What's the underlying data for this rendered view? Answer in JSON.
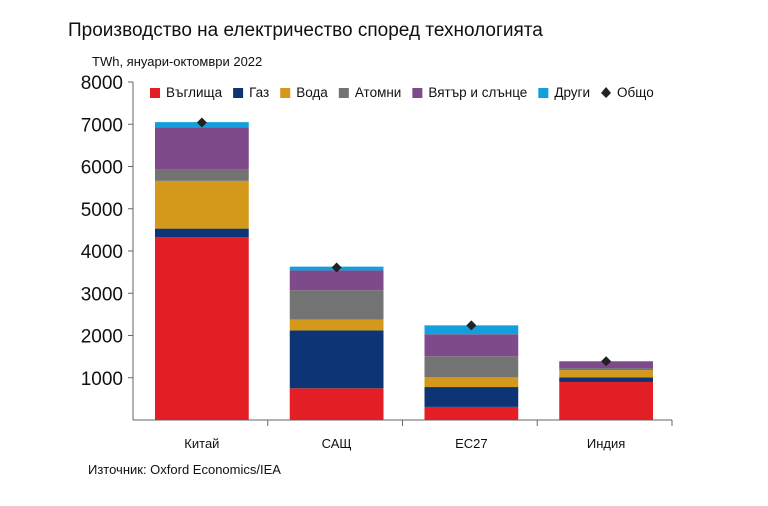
{
  "chart_data": {
    "type": "bar",
    "stacked": true,
    "title": "Производство на електричество според технологията",
    "ylabel": "TWh, януари-октомври 2022",
    "source": "Източник: Oxford Economics/IEA",
    "categories": [
      "Китай",
      "САЩ",
      "ЕС27",
      "Индия"
    ],
    "ylim": [
      0,
      8000
    ],
    "yticks": [
      1000,
      2000,
      3000,
      4000,
      5000,
      6000,
      7000,
      8000
    ],
    "series": [
      {
        "name": "Въглища",
        "color": "#e31e24",
        "values": [
          4330,
          750,
          310,
          900
        ]
      },
      {
        "name": "Газ",
        "color": "#0d3576",
        "values": [
          200,
          1370,
          470,
          110
        ]
      },
      {
        "name": "Вода",
        "color": "#d4991a",
        "values": [
          1130,
          260,
          230,
          170
        ]
      },
      {
        "name": "Атомни",
        "color": "#737373",
        "values": [
          280,
          690,
          500,
          50
        ]
      },
      {
        "name": "Вятър и слънце",
        "color": "#7f4a8c",
        "values": [
          990,
          470,
          520,
          160
        ]
      },
      {
        "name": "Други",
        "color": "#139fdb",
        "values": [
          120,
          90,
          210,
          0
        ]
      }
    ],
    "total": {
      "name": "Общо",
      "values": [
        7040,
        3610,
        2240,
        1390
      ]
    },
    "legend": "top"
  }
}
